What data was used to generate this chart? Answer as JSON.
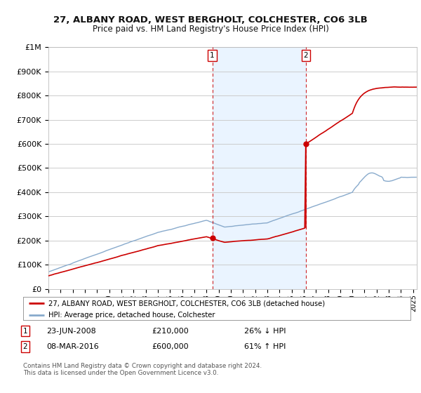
{
  "title": "27, ALBANY ROAD, WEST BERGHOLT, COLCHESTER, CO6 3LB",
  "subtitle": "Price paid vs. HM Land Registry's House Price Index (HPI)",
  "ylabel_values": [
    "£0",
    "£100K",
    "£200K",
    "£300K",
    "£400K",
    "£500K",
    "£600K",
    "£700K",
    "£800K",
    "£900K",
    "£1M"
  ],
  "yticks": [
    0,
    100000,
    200000,
    300000,
    400000,
    500000,
    600000,
    700000,
    800000,
    900000,
    1000000
  ],
  "ylim": [
    0,
    1000000
  ],
  "xlim_start": 1995.0,
  "xlim_end": 2025.3,
  "xticks": [
    1995,
    1996,
    1997,
    1998,
    1999,
    2000,
    2001,
    2002,
    2003,
    2004,
    2005,
    2006,
    2007,
    2008,
    2009,
    2010,
    2011,
    2012,
    2013,
    2014,
    2015,
    2016,
    2017,
    2018,
    2019,
    2020,
    2021,
    2022,
    2023,
    2024,
    2025
  ],
  "sale1_x": 2008.48,
  "sale1_y": 210000,
  "sale2_x": 2016.18,
  "sale2_y": 600000,
  "sale_color": "#cc0000",
  "hpi_color": "#88aacc",
  "vline_color": "#cc0000",
  "legend1_label": "27, ALBANY ROAD, WEST BERGHOLT, COLCHESTER, CO6 3LB (detached house)",
  "legend2_label": "HPI: Average price, detached house, Colchester",
  "footer1": "Contains HM Land Registry data © Crown copyright and database right 2024.",
  "footer2": "This data is licensed under the Open Government Licence v3.0.",
  "bg_color": "#ffffff",
  "grid_color": "#cccccc",
  "shade_color": "#ddeeff",
  "sale1_date": "23-JUN-2008",
  "sale1_price": "£210,000",
  "sale1_hpi": "26% ↓ HPI",
  "sale2_date": "08-MAR-2016",
  "sale2_price": "£600,000",
  "sale2_hpi": "61% ↑ HPI"
}
